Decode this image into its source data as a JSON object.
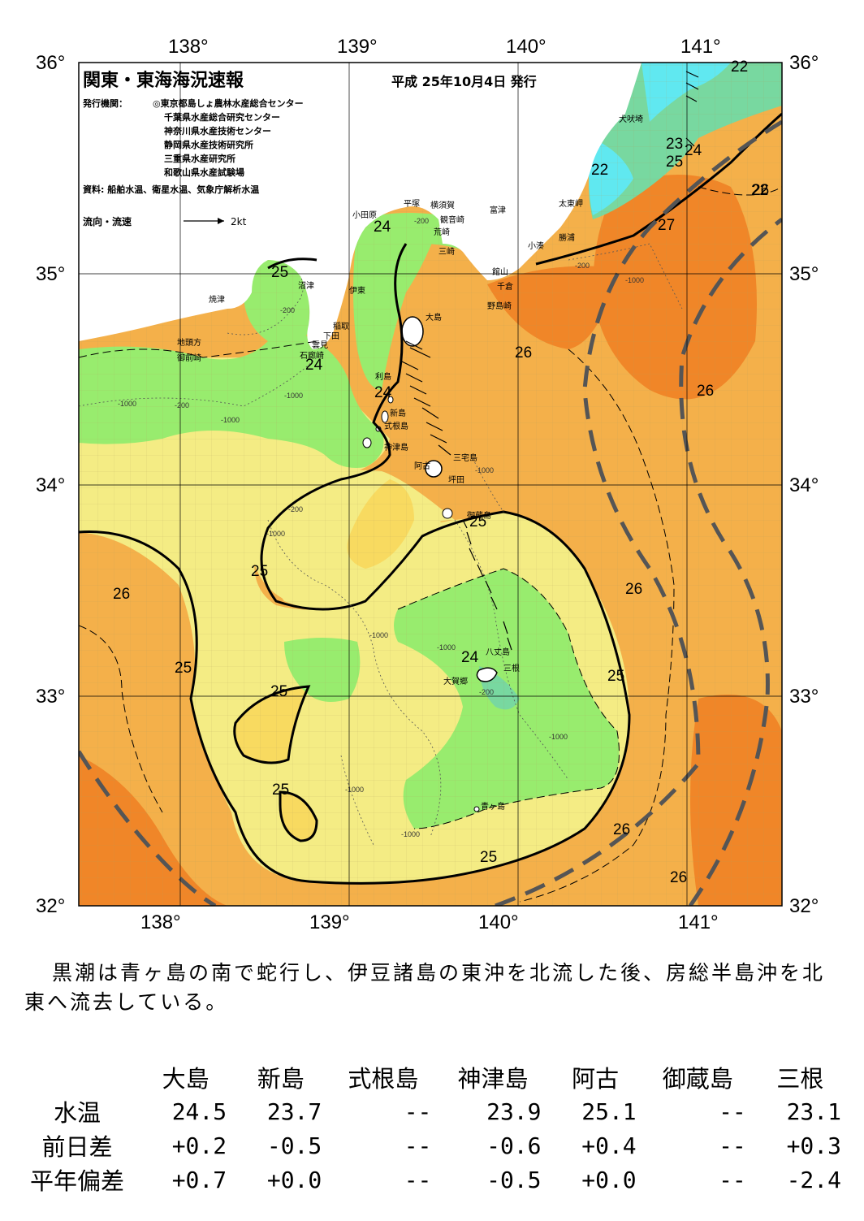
{
  "header": {
    "title": "関東・東海海況速報",
    "date": "平成 25年10月4日 発行",
    "issuer_label": "発行機関：",
    "issuers": [
      "◎東京都島しょ農林水産総合センター",
      "千葉県水産総合研究センター",
      "神奈川県水産技術センター",
      "静岡県水産技術研究所",
      "三重県水産研究所",
      "和歌山県水産試験場"
    ],
    "source": "資料: 船舶水温、衛星水温、気象庁解析水温",
    "flow_legend": "流向・流速",
    "flow_scale": "2kt"
  },
  "axes": {
    "lon_labels": [
      "138°",
      "139°",
      "140°",
      "141°"
    ],
    "lat_labels": [
      "36°",
      "35°",
      "34°",
      "33°",
      "32°"
    ]
  },
  "isotherm_labels": [
    "22",
    "22",
    "23",
    "24",
    "25",
    "22",
    "24",
    "25",
    "26",
    "27",
    "24",
    "24",
    "26",
    "26",
    "25",
    "25",
    "26",
    "26",
    "25",
    "25",
    "24",
    "25",
    "25",
    "26",
    "25",
    "26"
  ],
  "depth_labels": [
    "-1000",
    "-200",
    "-200",
    "-1000",
    "-200",
    "-1000",
    "-1000",
    "-200",
    "-1000",
    "-1000",
    "-1000",
    "-1000",
    "-200",
    "-1000",
    "-1000",
    "-1000",
    "-200"
  ],
  "places": [
    "犬吠埼",
    "太東岬",
    "勝浦",
    "小湊",
    "富津",
    "館山",
    "千倉",
    "野島崎",
    "横須賀",
    "観音崎",
    "荒崎",
    "三崎",
    "平塚",
    "小田原",
    "沼津",
    "伊東",
    "稲取",
    "下田",
    "雲見",
    "石廊崎",
    "焼津",
    "地頭方",
    "御前崎",
    "大島",
    "利島",
    "新島",
    "式根島",
    "神津島",
    "三宅島",
    "阿古",
    "坪田",
    "御蔵島",
    "八丈島",
    "三根",
    "大賀郷",
    "青ヶ島"
  ],
  "summary": "黒潮は青ヶ島の南で蛇行し、伊豆諸島の東沖を北流した後、房総半島沖を北東へ流去している。",
  "table": {
    "columns": [
      "大島",
      "新島",
      "式根島",
      "神津島",
      "阿古",
      "御蔵島",
      "三根"
    ],
    "rows": [
      {
        "label": "水温",
        "values": [
          "24.5",
          "23.7",
          "--",
          "23.9",
          "25.1",
          "--",
          "23.1"
        ]
      },
      {
        "label": "前日差",
        "values": [
          "+0.2",
          "-0.5",
          "--",
          "-0.6",
          "+0.4",
          "--",
          "+0.3"
        ]
      },
      {
        "label": "平年偏差",
        "values": [
          "+0.7",
          "+0.0",
          "--",
          "-0.5",
          "+0.0",
          "--",
          "-2.4"
        ]
      }
    ]
  },
  "colors": {
    "t22": "#60e8f0",
    "t23": "#78d8a0",
    "t24": "#98ec6e",
    "t25": "#f4ec84",
    "t25b": "#f8da60",
    "t26": "#f4b04a",
    "t27": "#f08628",
    "land": "#ffffff",
    "kuroshio": "#555555"
  }
}
